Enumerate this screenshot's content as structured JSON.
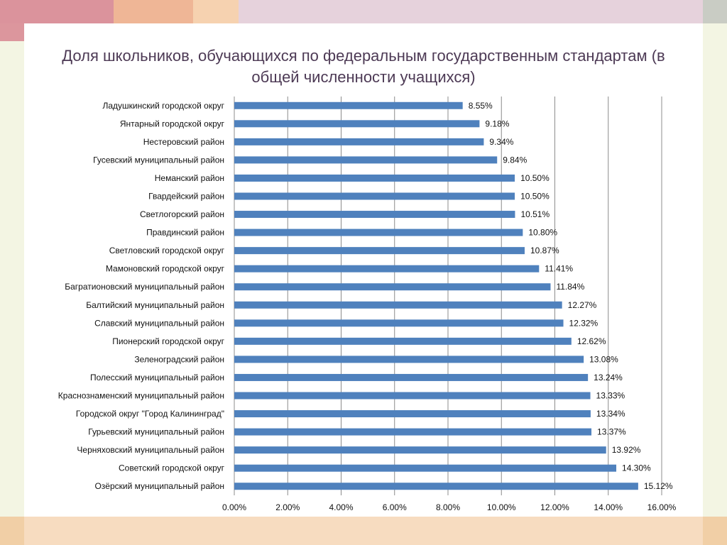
{
  "chart_data": {
    "type": "bar",
    "orientation": "horizontal",
    "title": "Доля школьников, обучающихся по федеральным государственным стандартам (в общей численности учащихся)",
    "title_lines": [
      "Доля школьников, обучающихся по федеральным государственным стандартам (в",
      "общей численности учащихся)"
    ],
    "categories": [
      "Ладушкинский городской округ",
      "Янтарный городской округ",
      "Нестеровский район",
      "Гусевский муниципальный район",
      "Неманский район",
      "Гвардейский район",
      "Светлогорский район",
      "Правдинский район",
      "Светловский городской округ",
      "Мамоновский городской округ",
      "Багратионовский муниципальный район",
      "Балтийский муниципальный район",
      "Славский муниципальный район",
      "Пионерский городской округ",
      "Зеленоградский район",
      "Полесский муниципальный район",
      "Краснознаменский муниципальный район",
      "Городской округ \"Город Калининград\"",
      "Гурьевский муниципальный район",
      "Черняховский муниципальный район",
      "Советский городской округ",
      "Озёрский муниципальный район"
    ],
    "values": [
      8.55,
      9.18,
      9.34,
      9.84,
      10.5,
      10.5,
      10.51,
      10.8,
      10.87,
      11.41,
      11.84,
      12.27,
      12.32,
      12.62,
      13.08,
      13.24,
      13.33,
      13.34,
      13.37,
      13.92,
      14.3,
      15.12
    ],
    "value_labels": [
      "8.55%",
      "9.18%",
      "9.34%",
      "9.84%",
      "10.50%",
      "10.50%",
      "10.51%",
      "10.80%",
      "10.87%",
      "11.41%",
      "11.84%",
      "12.27%",
      "12.32%",
      "12.62%",
      "13.08%",
      "13.24%",
      "13.33%",
      "13.34%",
      "13.37%",
      "13.92%",
      "14.30%",
      "15.12%"
    ],
    "x_ticks": [
      0,
      2,
      4,
      6,
      8,
      10,
      12,
      14,
      16
    ],
    "x_tick_labels": [
      "0.00%",
      "2.00%",
      "4.00%",
      "6.00%",
      "8.00%",
      "10.00%",
      "12.00%",
      "14.00%",
      "16.00%"
    ],
    "xlim": [
      0,
      16
    ],
    "grid": true,
    "legend": "none",
    "bar_color": "#4f81bd",
    "grid_color": "#8c8c8c"
  }
}
